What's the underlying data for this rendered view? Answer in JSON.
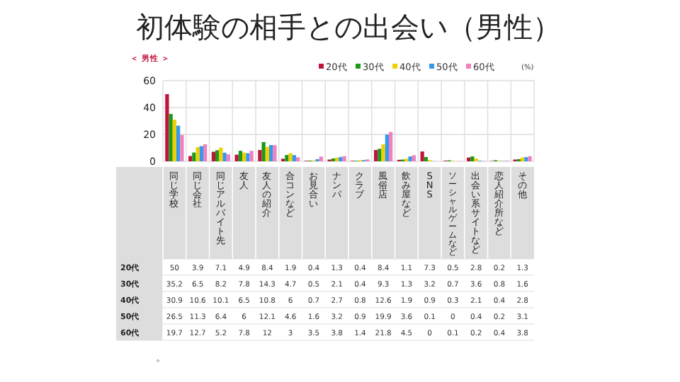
{
  "chart_data": {
    "type": "bar",
    "title": "初体験の相手との出会い（男性）",
    "subtitle": "＜ 男性 ＞",
    "categories": [
      "同じ学校",
      "同じ会社",
      "同じアルバイト先",
      "友人",
      "友人の紹介",
      "合コンなど",
      "お見合い",
      "ナンパ",
      "クラブ",
      "風俗店",
      "飲み屋など",
      "SNS",
      "ソーシャルゲームなど",
      "出会い系サイトなど",
      "恋人紹介所など",
      "その他"
    ],
    "series": [
      {
        "name": "20代",
        "color": "#c0143c",
        "values": [
          50.0,
          3.9,
          7.1,
          4.9,
          8.4,
          1.9,
          0.4,
          1.3,
          0.4,
          8.4,
          1.1,
          7.3,
          0.5,
          2.8,
          0.2,
          1.3
        ]
      },
      {
        "name": "30代",
        "color": "#1a9a1a",
        "values": [
          35.2,
          6.5,
          8.2,
          7.8,
          14.3,
          4.7,
          0.5,
          2.1,
          0.4,
          9.3,
          1.3,
          3.2,
          0.7,
          3.6,
          0.8,
          1.6
        ]
      },
      {
        "name": "40代",
        "color": "#f0d000",
        "values": [
          30.9,
          10.6,
          10.1,
          6.5,
          10.8,
          6.0,
          0.7,
          2.7,
          0.8,
          12.6,
          1.9,
          0.9,
          0.3,
          2.1,
          0.4,
          2.8
        ]
      },
      {
        "name": "50代",
        "color": "#3399ee",
        "values": [
          26.5,
          11.3,
          6.4,
          6.0,
          12.1,
          4.6,
          1.6,
          3.2,
          0.9,
          19.9,
          3.6,
          0.1,
          0,
          0.4,
          0.2,
          3.1
        ]
      },
      {
        "name": "60代",
        "color": "#f080c0",
        "values": [
          19.7,
          12.7,
          5.2,
          7.8,
          12.0,
          3.0,
          3.5,
          3.8,
          1.4,
          21.8,
          4.5,
          0,
          0.1,
          0.2,
          0.4,
          3.8
        ]
      }
    ],
    "ylim": [
      0,
      60
    ],
    "yticks": [
      0,
      20,
      40,
      60
    ],
    "grid": true,
    "legend": "top right",
    "data_labels": true,
    "annotations": [
      "(%)",
      "。"
    ]
  }
}
